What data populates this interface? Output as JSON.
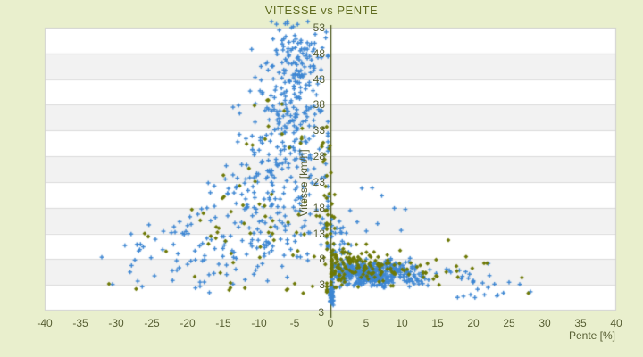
{
  "title": "VITESSE vs PENTE",
  "chart_data": {
    "type": "scatter",
    "title": "VITESSE vs PENTE",
    "xlabel": "Pente [%]",
    "ylabel": "Vitesse [km/h]",
    "xlim": [
      -40,
      40
    ],
    "ylim": [
      -2,
      53
    ],
    "x_ticks": [
      -40,
      -35,
      -30,
      -25,
      -20,
      -15,
      -10,
      -5,
      0,
      5,
      10,
      15,
      20,
      25,
      30,
      35,
      40
    ],
    "y_ticks": [
      53,
      48,
      43,
      38,
      33,
      28,
      23,
      18,
      13,
      8,
      3
    ],
    "y_axis_corner_label": "3",
    "y_axis_position": "at x=0",
    "grid": "horizontal alternating bands every 5 units",
    "legend": "none",
    "colors": {
      "background": "#E9EFCD",
      "plot_background": "#FFFFFF",
      "band_alternate": "#F2F2F2",
      "gridline": "#DBDBDB",
      "plot_border": "#CFCFCF",
      "zero_axis_line": "#4D591F",
      "title_text": "#5F6B1E",
      "tick_text": "#575E33",
      "series_blue": "#3E87D3",
      "series_olive": "#6E7906"
    },
    "series": [
      {
        "name": "blue-plus-points",
        "marker": "plus",
        "color": "#3E87D3",
        "note": "dense GPS-like cloud approximated by clusters: fast descent fan at negative slopes, dense slow blob at 0..13% uphill, solid bar at 0% below 3 km/h",
        "clusters": [
          {
            "seed": 11,
            "n": 100,
            "cx": -4.8,
            "cy": 47.5,
            "sx": 2.0,
            "sy": 3.2,
            "xr": [
              -32,
              -0.35
            ],
            "yr": [
              30,
              54.2
            ]
          },
          {
            "seed": 12,
            "n": 110,
            "cx": -5.5,
            "cy": 38.0,
            "sx": 2.6,
            "sy": 3.8,
            "xr": [
              -32,
              -0.35
            ],
            "yr": [
              5,
              54.2
            ]
          },
          {
            "seed": 13,
            "n": 100,
            "cx": -6.5,
            "cy": 29.0,
            "sx": 3.6,
            "sy": 4.2,
            "xr": [
              -32,
              -0.35
            ],
            "yr": [
              4,
              54.2
            ]
          },
          {
            "seed": 14,
            "n": 85,
            "cx": -8.0,
            "cy": 20.0,
            "sx": 5.0,
            "sy": 3.8,
            "xr": [
              -32,
              -0.35
            ],
            "yr": [
              3,
              50
            ]
          },
          {
            "seed": 15,
            "n": 75,
            "cx": -10.0,
            "cy": 13.0,
            "sx": 6.5,
            "sy": 3.0,
            "xr": [
              -32,
              -0.35
            ],
            "yr": [
              2.5,
              45
            ]
          },
          {
            "seed": 16,
            "n": 45,
            "cx": -14.0,
            "cy": 8.5,
            "sx": 7.0,
            "sy": 2.2,
            "xr": [
              -32,
              -0.35
            ],
            "yr": [
              2,
              40
            ]
          },
          {
            "seed": 17,
            "n": 18,
            "cx": -24.0,
            "cy": 12.0,
            "sx": 3.5,
            "sy": 3.5,
            "xr": [
              -32,
              -0.35
            ],
            "yr": [
              2,
              40
            ]
          },
          {
            "seed": 18,
            "n": 370,
            "cx": 5.2,
            "cy": 5.4,
            "sx": 2.6,
            "sy": 1.15,
            "xr": [
              0.3,
              14.5
            ],
            "yr": [
              2.5,
              9.5
            ]
          },
          {
            "seed": 19,
            "n": 70,
            "cx": 9.5,
            "cy": 5.0,
            "sx": 2.4,
            "sy": 1.3,
            "xr": [
              4,
              15.5
            ],
            "yr": [
              2.5,
              8.5
            ]
          },
          {
            "seed": 20,
            "n": 70,
            "cx": 0.15,
            "cy": 1.1,
            "sx": 0.14,
            "sy": 0.95,
            "xr": [
              -0.05,
              0.4
            ],
            "yr": [
              -1.0,
              2.7
            ]
          },
          {
            "seed": 21,
            "n": 26,
            "cx": 1.3,
            "cy": 11.5,
            "sx": 1.1,
            "sy": 2.6,
            "xr": [
              0.2,
              5
            ],
            "yr": [
              8,
              22
            ]
          },
          {
            "seed": 22,
            "n": 20,
            "cx": 16.5,
            "cy": 4.6,
            "sx": 2.8,
            "sy": 1.1,
            "xr": [
              13,
              28
            ],
            "yr": [
              2.5,
              8
            ]
          },
          {
            "seed": 23,
            "n": 10,
            "cx": 19.0,
            "cy": 1.2,
            "sx": 4.0,
            "sy": 0.6,
            "xr": [
              13,
              28
            ],
            "yr": [
              0.3,
              2.5
            ]
          },
          {
            "seed": 24,
            "n": 12,
            "cx": -17.0,
            "cy": 4.2,
            "sx": 5.5,
            "sy": 1.3,
            "xr": [
              -32,
              -2
            ],
            "yr": [
              1.5,
              7
            ]
          },
          {
            "seed": 25,
            "n": 8,
            "cx": 4.5,
            "cy": 16.0,
            "sx": 2.6,
            "sy": 3.2,
            "xr": [
              0.5,
              11
            ],
            "yr": [
              9,
              23
            ]
          }
        ],
        "points": [
          [
            -27,
            10.8
          ],
          [
            -26.2,
            10.4
          ],
          [
            4.4,
            21.8
          ],
          [
            9.9,
            13.6
          ],
          [
            25,
            3.5
          ],
          [
            26.5,
            3.1
          ],
          [
            20,
            3.8
          ],
          [
            -5.2,
            53.2
          ],
          [
            -30.5,
            3.1
          ]
        ]
      },
      {
        "name": "olive-diamond-points",
        "marker": "diamond",
        "color": "#6E7906",
        "note": "sparser companion series scattered over the slow blob, strung along the 0% axis line and through the descent fan",
        "clusters": [
          {
            "seed": 31,
            "n": 95,
            "cx": 4.2,
            "cy": 7.3,
            "sx": 3.6,
            "sy": 1.5,
            "xr": [
              0.2,
              15
            ],
            "yr": [
              3,
              11
            ]
          },
          {
            "seed": 32,
            "n": 30,
            "cx": 6.0,
            "cy": 5.5,
            "sx": 3.0,
            "sy": 1.2,
            "xr": [
              0.3,
              13
            ],
            "yr": [
              2.8,
              9
            ]
          },
          {
            "seed": 33,
            "n": 40,
            "cx": 1.0,
            "cy": 5.8,
            "sx": 1.1,
            "sy": 1.9,
            "xr": [
              0.1,
              4
            ],
            "yr": [
              2.5,
              10
            ]
          },
          {
            "seed": 34,
            "n": 26,
            "cx": -0.3,
            "cy": 17.0,
            "sx": 0.55,
            "sy": 7.5,
            "xr": [
              -1.6,
              0.6
            ],
            "yr": [
              7,
              34
            ]
          },
          {
            "seed": 35,
            "n": 55,
            "cx": -8.5,
            "cy": 13.0,
            "sx": 6.0,
            "sy": 6.0,
            "xr": [
              -28,
              -0.5
            ],
            "yr": [
              2,
              33
            ]
          },
          {
            "seed": 36,
            "n": 14,
            "cx": -6.5,
            "cy": 32.0,
            "sx": 3.2,
            "sy": 2.6,
            "xr": [
              -13,
              -1
            ],
            "yr": [
              26,
              38
            ]
          },
          {
            "seed": 37,
            "n": 5,
            "cx": -8.5,
            "cy": 38.0,
            "sx": 1.8,
            "sy": 1.2,
            "xr": [
              -13,
              -1
            ],
            "yr": [
              35,
              41
            ]
          },
          {
            "seed": 38,
            "n": 16,
            "cx": 16.0,
            "cy": 6.3,
            "sx": 2.6,
            "sy": 1.8,
            "xr": [
              13,
              27
            ],
            "yr": [
              3,
              12
            ]
          },
          {
            "seed": 39,
            "n": 12,
            "cx": -5.0,
            "cy": 2.4,
            "sx": 5.0,
            "sy": 0.8,
            "xr": [
              -14,
              -0.5
            ],
            "yr": [
              0.8,
              3.4
            ]
          }
        ],
        "points": [
          [
            -31,
            3.2
          ],
          [
            -27.2,
            2.2
          ],
          [
            -26,
            13
          ],
          [
            -25.5,
            12.4
          ],
          [
            -23,
            9.5
          ],
          [
            -19,
            4.6
          ],
          [
            26.8,
            4.4
          ],
          [
            21.5,
            7.2
          ],
          [
            27.7,
            1.4
          ],
          [
            16.5,
            11.7
          ],
          [
            14.8,
            7.9
          ]
        ]
      }
    ]
  }
}
